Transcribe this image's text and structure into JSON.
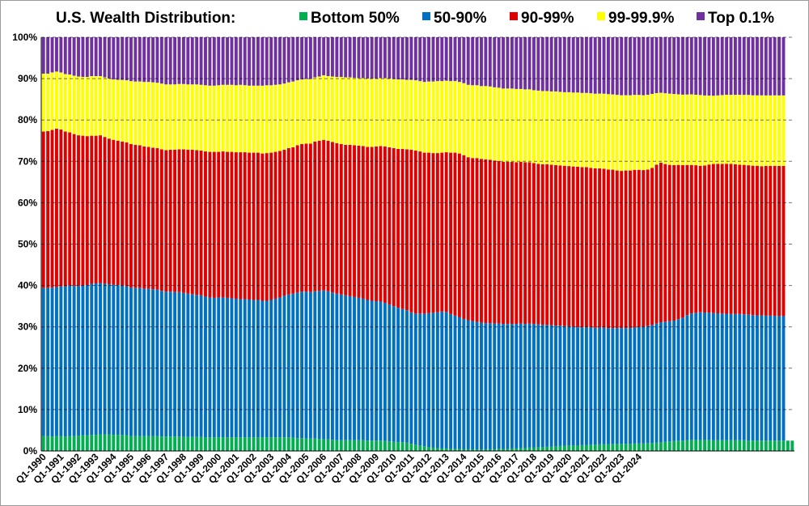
{
  "chart_data": {
    "type": "bar",
    "stacked": true,
    "title": "U.S. Wealth Distribution:",
    "xlabel": "",
    "ylabel": "",
    "ylim": [
      0,
      100
    ],
    "y_unit": "%",
    "y_ticks": [
      0,
      10,
      20,
      30,
      40,
      50,
      60,
      70,
      80,
      90,
      100
    ],
    "y_tick_labels": [
      "0%",
      "10%",
      "20%",
      "30%",
      "40%",
      "50%",
      "60%",
      "70%",
      "80%",
      "90%",
      "100%"
    ],
    "grid": true,
    "legend_position": "top",
    "x_start": "Q1-1990",
    "x_end": "Q4-2024",
    "x_frequency": "quarterly",
    "x_tick_labels": [
      "Q1-1990",
      "Q1-1991",
      "Q1-1992",
      "Q1-1993",
      "Q1-1994",
      "Q1-1995",
      "Q1-1996",
      "Q1-1997",
      "Q1-1998",
      "Q1-1999",
      "Q1-2000",
      "Q1-2001",
      "Q1-2002",
      "Q1-2003",
      "Q1-2004",
      "Q1-2005",
      "Q1-2006",
      "Q1-2007",
      "Q1-2008",
      "Q1-2009",
      "Q1-2010",
      "Q1-2011",
      "Q1-2012",
      "Q1-2013",
      "Q1-2014",
      "Q1-2015",
      "Q1-2016",
      "Q1-2017",
      "Q1-2018",
      "Q1-2019",
      "Q1-2020",
      "Q1-2021",
      "Q1-2022",
      "Q1-2023",
      "Q1-2024"
    ],
    "series": [
      {
        "name": "Bottom 50%",
        "color": "#00b050",
        "values": [
          3.6,
          3.6,
          3.5,
          3.6,
          3.6,
          3.5,
          3.6,
          3.6,
          3.7,
          3.8,
          3.8,
          3.9,
          3.9,
          4.0,
          4.0,
          4.0,
          3.9,
          3.9,
          3.9,
          3.8,
          3.6,
          3.6,
          3.6,
          3.6,
          3.6,
          3.6,
          3.6,
          3.5,
          3.5,
          3.5,
          3.5,
          3.5,
          3.4,
          3.4,
          3.4,
          3.4,
          3.4,
          3.3,
          3.3,
          3.3,
          3.3,
          3.3,
          3.3,
          3.3,
          3.3,
          3.3,
          3.3,
          3.3,
          3.3,
          3.3,
          3.3,
          3.3,
          3.3,
          3.3,
          3.3,
          3.3,
          3.3,
          3.2,
          3.1,
          3.1,
          3.0,
          3.0,
          3.0,
          2.9,
          2.8,
          2.8,
          2.7,
          2.6,
          2.6,
          2.6,
          2.6,
          2.6,
          2.6,
          2.6,
          2.5,
          2.5,
          2.5,
          2.5,
          2.4,
          2.3,
          2.2,
          2.1,
          2.1,
          2.0,
          1.7,
          1.5,
          1.3,
          1.1,
          0.9,
          0.8,
          0.7,
          0.6,
          0.6,
          0.5,
          0.5,
          0.5,
          0.4,
          0.4,
          0.4,
          0.4,
          0.4,
          0.4,
          0.4,
          0.4,
          0.5,
          0.5,
          0.5,
          0.6,
          0.6,
          0.7,
          0.7,
          0.8,
          0.8,
          0.9,
          0.9,
          1.0,
          1.0,
          1.1,
          1.2,
          1.2,
          1.3,
          1.3,
          1.3,
          1.4,
          1.4,
          1.5,
          1.5,
          1.6,
          1.6,
          1.6,
          1.7,
          1.7,
          1.7,
          1.7,
          1.7,
          1.8,
          1.8,
          1.8,
          1.9,
          1.9,
          2.0,
          2.1,
          2.2,
          2.3,
          2.4,
          2.5,
          2.5,
          2.6,
          2.7,
          2.7,
          2.7,
          2.7,
          2.7,
          2.6,
          2.6,
          2.6,
          2.6,
          2.6,
          2.6,
          2.6,
          2.6,
          2.5,
          2.5,
          2.5,
          2.5,
          2.5,
          2.5,
          2.5,
          2.5,
          2.5,
          2.5,
          2.5
        ]
      },
      {
        "name": "50-90%",
        "color": "#0070c0",
        "values": [
          35.8,
          35.8,
          36.0,
          36.0,
          36.2,
          36.3,
          36.4,
          36.3,
          36.2,
          36.2,
          36.3,
          36.5,
          36.6,
          36.6,
          36.4,
          36.3,
          36.3,
          36.2,
          36.1,
          36.0,
          35.9,
          35.8,
          35.8,
          35.6,
          35.6,
          35.5,
          35.4,
          35.2,
          35.0,
          35.0,
          34.9,
          34.9,
          34.8,
          34.6,
          34.5,
          34.3,
          34.2,
          34.0,
          33.8,
          33.7,
          33.8,
          33.8,
          33.7,
          33.6,
          33.5,
          33.4,
          33.4,
          33.3,
          33.2,
          33.2,
          33.0,
          33.0,
          33.2,
          33.5,
          33.8,
          34.2,
          34.5,
          34.8,
          35.2,
          35.4,
          35.5,
          35.4,
          35.6,
          35.8,
          36.0,
          35.8,
          35.6,
          35.4,
          35.2,
          35.0,
          34.8,
          34.6,
          34.4,
          34.2,
          34.0,
          33.8,
          33.7,
          33.6,
          33.4,
          33.1,
          32.8,
          32.5,
          32.2,
          32.0,
          31.8,
          31.7,
          31.9,
          32.1,
          32.4,
          32.6,
          32.8,
          33.1,
          33.0,
          32.6,
          32.2,
          31.8,
          31.5,
          31.2,
          31.0,
          30.8,
          30.6,
          30.5,
          30.5,
          30.4,
          30.3,
          30.2,
          30.2,
          30.1,
          30.1,
          30.1,
          30.0,
          30.0,
          29.9,
          29.7,
          29.6,
          29.5,
          29.4,
          29.2,
          29.1,
          29.0,
          28.9,
          28.8,
          28.7,
          28.6,
          28.6,
          28.5,
          28.4,
          28.4,
          28.3,
          28.2,
          28.2,
          28.2,
          28.2,
          28.2,
          28.2,
          28.2,
          28.3,
          28.4,
          28.5,
          28.8,
          29.0,
          29.2,
          29.2,
          29.2,
          29.3,
          29.6,
          30.0,
          30.6,
          31.0,
          31.2,
          31.4,
          31.3,
          31.2,
          31.1,
          31.0,
          30.9,
          30.8,
          30.7,
          30.7,
          30.7,
          30.6,
          30.6,
          30.5,
          30.4,
          30.4,
          30.3,
          30.3,
          30.3,
          30.2,
          30.2
        ]
      },
      {
        "name": "90-99%",
        "color": "#e00000",
        "values": [
          37.8,
          37.9,
          38.1,
          38.3,
          37.9,
          37.4,
          37.0,
          36.7,
          36.4,
          36.2,
          36.0,
          35.8,
          35.7,
          35.7,
          35.5,
          35.2,
          35.0,
          34.9,
          34.8,
          34.8,
          34.7,
          34.6,
          34.5,
          34.4,
          34.3,
          34.2,
          34.2,
          34.2,
          34.2,
          34.3,
          34.4,
          34.5,
          34.7,
          34.8,
          34.9,
          35.0,
          35.0,
          35.1,
          35.2,
          35.3,
          35.2,
          35.3,
          35.3,
          35.4,
          35.4,
          35.5,
          35.5,
          35.5,
          35.6,
          35.6,
          35.6,
          35.7,
          35.6,
          35.5,
          35.4,
          35.3,
          35.4,
          35.4,
          35.6,
          35.7,
          35.8,
          35.9,
          36.2,
          36.3,
          36.4,
          36.4,
          36.4,
          36.4,
          36.4,
          36.4,
          36.6,
          36.7,
          36.8,
          36.9,
          37.0,
          37.2,
          37.4,
          37.6,
          37.8,
          38.0,
          38.2,
          38.4,
          38.7,
          38.9,
          39.3,
          39.4,
          39.2,
          38.9,
          38.8,
          38.6,
          38.5,
          38.4,
          38.6,
          39.0,
          39.4,
          39.6,
          39.6,
          39.4,
          39.4,
          39.6,
          39.6,
          39.6,
          39.5,
          39.4,
          39.3,
          39.2,
          39.2,
          39.2,
          39.1,
          39.1,
          39.1,
          39.0,
          38.9,
          38.8,
          38.8,
          38.8,
          38.8,
          38.8,
          38.7,
          38.8,
          38.8,
          38.8,
          38.9,
          38.8,
          38.8,
          38.7,
          38.7,
          38.7,
          38.6,
          38.5,
          38.5,
          38.3,
          38.2,
          38.3,
          38.3,
          38.3,
          38.2,
          38.1,
          38.1,
          38.2,
          38.7,
          38.8,
          38.3,
          38.0,
          37.8,
          37.6,
          37.2,
          36.7,
          36.4,
          36.2,
          36.0,
          36.1,
          36.3,
          36.5,
          36.5,
          36.5,
          36.5,
          36.5,
          36.4,
          36.3,
          36.3,
          36.3,
          36.3,
          36.3,
          36.2,
          36.3,
          36.3,
          36.4,
          36.4,
          36.4
        ]
      },
      {
        "name": "99-99.9%",
        "color": "#ffff00",
        "values": [
          14.0,
          13.9,
          13.9,
          13.8,
          13.8,
          13.9,
          14.0,
          14.1,
          14.2,
          14.2,
          14.3,
          14.4,
          14.4,
          14.3,
          14.4,
          14.5,
          14.6,
          14.7,
          14.9,
          15.0,
          15.2,
          15.3,
          15.4,
          15.6,
          15.7,
          15.8,
          15.8,
          15.9,
          15.9,
          15.8,
          15.8,
          15.8,
          15.8,
          15.8,
          15.8,
          15.9,
          15.9,
          16.0,
          16.0,
          16.0,
          16.1,
          16.1,
          16.2,
          16.2,
          16.2,
          16.3,
          16.2,
          16.2,
          16.2,
          16.2,
          16.4,
          16.4,
          16.3,
          16.2,
          16.1,
          16.0,
          15.9,
          15.9,
          15.7,
          15.6,
          15.6,
          15.6,
          15.5,
          15.5,
          15.6,
          15.6,
          15.8,
          16.0,
          16.2,
          16.3,
          16.3,
          16.3,
          16.3,
          16.4,
          16.5,
          16.5,
          16.4,
          16.4,
          16.5,
          16.6,
          16.7,
          16.8,
          16.8,
          16.8,
          16.9,
          17.0,
          17.0,
          17.1,
          17.2,
          17.3,
          17.4,
          17.3,
          17.3,
          17.3,
          17.3,
          17.3,
          17.4,
          17.5,
          17.6,
          17.6,
          17.6,
          17.7,
          17.7,
          17.7,
          17.7,
          17.7,
          17.7,
          17.7,
          17.7,
          17.6,
          17.6,
          17.6,
          17.6,
          17.7,
          17.7,
          17.7,
          17.7,
          17.8,
          17.8,
          17.8,
          17.9,
          17.9,
          18.0,
          18.0,
          18.0,
          18.1,
          18.1,
          18.2,
          18.2,
          18.3,
          18.3,
          18.4,
          18.4,
          18.3,
          18.3,
          18.2,
          18.2,
          18.2,
          18.2,
          18.0,
          17.4,
          17.0,
          17.2,
          17.3,
          17.3,
          17.2,
          17.2,
          17.2,
          17.3,
          17.3,
          17.4,
          17.2,
          16.9,
          16.7,
          16.7,
          16.8,
          16.8,
          16.8,
          16.9,
          17.0,
          17.0,
          17.1,
          17.1,
          17.1,
          17.2,
          17.1,
          17.1,
          17.1,
          17.1,
          17.1,
          17.2,
          17.2
        ]
      },
      {
        "name": "Top 0.1%",
        "color": "#7030a0",
        "values": [
          8.8,
          8.8,
          8.5,
          8.3,
          8.5,
          8.9,
          9.0,
          9.3,
          9.5,
          9.6,
          9.6,
          9.4,
          9.4,
          9.4,
          9.7,
          10.0,
          10.2,
          10.3,
          10.3,
          10.4,
          10.6,
          10.7,
          10.7,
          10.8,
          10.8,
          10.9,
          11.0,
          11.2,
          11.4,
          11.4,
          11.4,
          11.3,
          11.3,
          11.4,
          11.4,
          11.4,
          11.5,
          11.6,
          11.7,
          11.7,
          11.6,
          11.5,
          11.5,
          11.5,
          11.6,
          11.5,
          11.6,
          11.7,
          11.7,
          11.7,
          11.7,
          11.6,
          11.6,
          11.5,
          11.4,
          11.2,
          10.9,
          10.7,
          10.4,
          10.2,
          10.1,
          10.1,
          9.7,
          9.5,
          9.2,
          9.4,
          9.5,
          9.6,
          9.6,
          9.7,
          9.7,
          9.8,
          9.9,
          9.9,
          10.0,
          10.0,
          10.0,
          9.9,
          9.9,
          10.0,
          10.1,
          10.2,
          10.2,
          10.3,
          10.3,
          10.4,
          10.6,
          10.8,
          10.7,
          10.7,
          10.6,
          10.6,
          10.5,
          10.6,
          10.6,
          10.8,
          11.1,
          11.5,
          11.6,
          11.6,
          11.8,
          11.8,
          11.9,
          12.1,
          12.2,
          12.4,
          12.4,
          12.4,
          12.5,
          12.5,
          12.6,
          12.6,
          12.8,
          12.9,
          13.0,
          13.0,
          13.1,
          13.1,
          13.2,
          13.3,
          13.3,
          13.4,
          13.4,
          13.5,
          13.5,
          13.6,
          13.7,
          13.7,
          13.7,
          13.8,
          13.9,
          14.0,
          14.1,
          14.1,
          14.1,
          14.0,
          14.0,
          14.1,
          14.0,
          13.8,
          13.6,
          13.5,
          13.6,
          13.7,
          13.8,
          13.9,
          14.0,
          14.0,
          14.0,
          14.1,
          14.2,
          14.3,
          14.3,
          14.3,
          14.2,
          14.1,
          14.0,
          14.0,
          14.0,
          14.0,
          14.0,
          14.0,
          14.1,
          14.1,
          14.1,
          14.1,
          14.1,
          14.1,
          14.1,
          14.1,
          14.1,
          14.0,
          14.0
        ]
      }
    ]
  }
}
